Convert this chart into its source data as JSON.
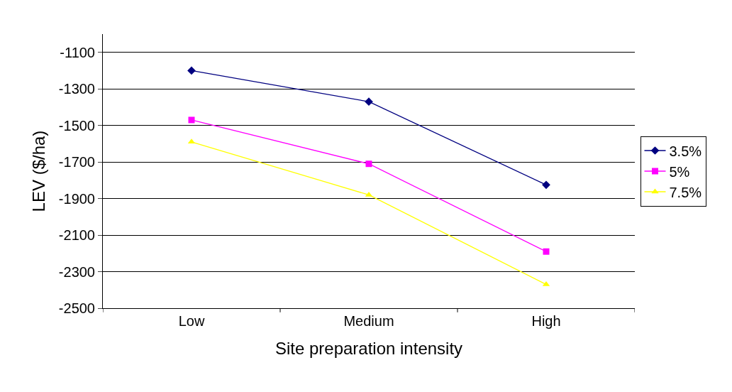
{
  "chart_data": {
    "type": "line",
    "xlabel": "Site preparation intensity",
    "ylabel": "LEV ($/ha)",
    "categories": [
      "Low",
      "Medium",
      "High"
    ],
    "series": [
      {
        "name": "3.5%",
        "color": "#000080",
        "marker": "diamond",
        "values": [
          -1200,
          -1370,
          -1825
        ]
      },
      {
        "name": "5%",
        "color": "#ff00ff",
        "marker": "square",
        "values": [
          -1470,
          -1710,
          -2190
        ]
      },
      {
        "name": "7.5%",
        "color": "#ffff00",
        "marker": "triangle",
        "values": [
          -1590,
          -1880,
          -2370
        ]
      }
    ],
    "ylim": [
      -2500,
      -1000
    ],
    "yticks": [
      -2500,
      -2300,
      -2100,
      -1900,
      -1700,
      -1500,
      -1300,
      -1100
    ],
    "grid": "y",
    "legend": "right"
  }
}
